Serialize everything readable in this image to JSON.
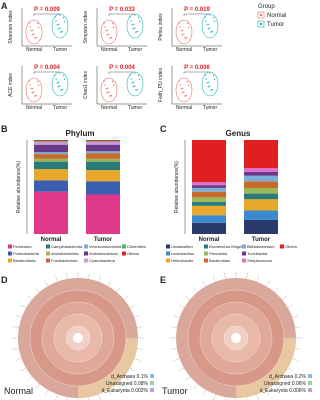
{
  "panels": {
    "a": "A",
    "b": "B",
    "c": "C",
    "d": "D",
    "e": "E"
  },
  "alpha": {
    "plots": [
      {
        "ylabel": "Shannon index",
        "p": "P = 0.009"
      },
      {
        "ylabel": "Simpson index",
        "p": "P = 0.033"
      },
      {
        "ylabel": "Pielou index",
        "p": "P = 0.019"
      },
      {
        "ylabel": "ACE index",
        "p": "P = 0.004"
      },
      {
        "ylabel": "Chao1 index",
        "p": "P = 0.004"
      },
      {
        "ylabel": "Faith_PD index",
        "p": "P = 0.006"
      }
    ],
    "groups": [
      "Normal",
      "Tumor"
    ],
    "legend_title": "Group",
    "colors": [
      "#e8706a",
      "#1fb5b5"
    ]
  },
  "chart_data": [
    {
      "type": "stacked-bar",
      "title": "Phylum",
      "ylabel": "Relative abundance(%)",
      "categories": [
        "Normal",
        "Tumor"
      ],
      "ylim": [
        0,
        100
      ],
      "series": [
        {
          "name": "Firmicutes",
          "color": "#e0388a",
          "values": [
            45,
            42
          ]
        },
        {
          "name": "Proteobacteria",
          "color": "#3a5fb0",
          "values": [
            12,
            14
          ]
        },
        {
          "name": "Bacteroidota",
          "color": "#e8a82c",
          "values": [
            12,
            12
          ]
        },
        {
          "name": "Campilobacterota",
          "color": "#2a7a7a",
          "values": [
            8,
            9
          ]
        },
        {
          "name": "Acidobacteriota",
          "color": "#9ab85a",
          "values": [
            3,
            3
          ]
        },
        {
          "name": "Fusobacteriota",
          "color": "#c86a2a",
          "values": [
            5,
            6
          ]
        },
        {
          "name": "Verrucomicrobiota",
          "color": "#7ab0d8",
          "values": [
            2,
            2
          ]
        },
        {
          "name": "Actinobacteriota",
          "color": "#6a3a8a",
          "values": [
            8,
            7
          ]
        },
        {
          "name": "Cyanobacteria",
          "color": "#c89ad8",
          "values": [
            3,
            3
          ]
        },
        {
          "name": "Chloroflexi",
          "color": "#4ab870",
          "values": [
            1,
            1
          ]
        },
        {
          "name": "Others",
          "color": "#e02020",
          "values": [
            1,
            1
          ]
        }
      ]
    },
    {
      "type": "stacked-bar",
      "title": "Genus",
      "ylabel": "Relative abundance(%)",
      "categories": [
        "Normal",
        "Tumor"
      ],
      "ylim": [
        0,
        100
      ],
      "series": [
        {
          "name": "Unclassified",
          "color": "#2a3a6a",
          "values": [
            12,
            15
          ]
        },
        {
          "name": "Lactobacillus",
          "color": "#3a8ad0",
          "values": [
            8,
            10
          ]
        },
        {
          "name": "Helicobacter",
          "color": "#e8a82c",
          "values": [
            10,
            12
          ]
        },
        {
          "name": "Escherichia-Shigella",
          "color": "#2a7a7a",
          "values": [
            4,
            6
          ]
        },
        {
          "name": "Prevotella",
          "color": "#9ab85a",
          "values": [
            5,
            6
          ]
        },
        {
          "name": "Bacteroides",
          "color": "#c86a2a",
          "values": [
            6,
            7
          ]
        },
        {
          "name": "Bifidobacterium",
          "color": "#7ab0d8",
          "values": [
            4,
            6
          ]
        },
        {
          "name": "Turicibacter",
          "color": "#6a3a8a",
          "values": [
            3,
            4
          ]
        },
        {
          "name": "Streptococcus",
          "color": "#e070d0",
          "values": [
            3,
            4
          ]
        },
        {
          "name": "Others",
          "color": "#e02020",
          "values": [
            45,
            30
          ]
        }
      ]
    }
  ],
  "krona": [
    {
      "group": "Normal",
      "items": [
        "d_Archaea 0.1%",
        "Unassigned 0.08%",
        "d_Eukaryota 0.002%"
      ]
    },
    {
      "group": "Tumor",
      "items": [
        "d_Archaea 0.2%",
        "Unassigned 0.06%",
        "d_Eukaryota 0.006%"
      ]
    }
  ]
}
